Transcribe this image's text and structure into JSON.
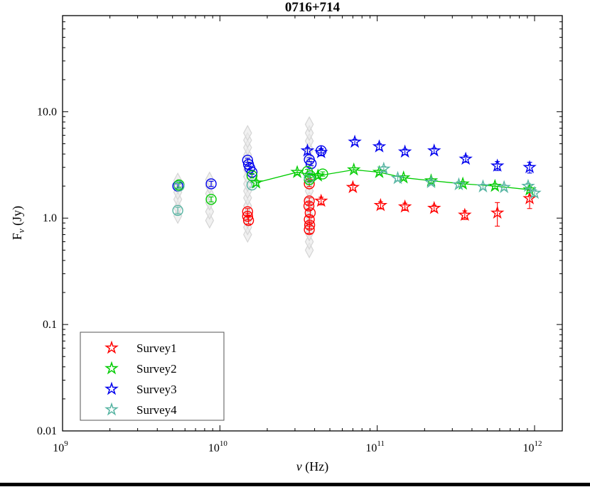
{
  "window": {
    "bottom_border_color": "#000000"
  },
  "chart_data": {
    "type": "scatter",
    "title": "0716+714",
    "xlabel": "ν (Hz)",
    "ylabel": "F_ν (Jy)",
    "xscale": "log",
    "yscale": "log",
    "xlim": [
      1000000000.0,
      1500000000000.0
    ],
    "ylim": [
      0.01,
      80
    ],
    "grid": false,
    "labels": {
      "x_symbol": "ν",
      "x_rest": " (Hz)",
      "y_main": "F",
      "y_sub": "ν",
      "y_rest": " (Jy)"
    },
    "x_major_ticks": [
      1000000000.0,
      10000000000.0,
      100000000000.0,
      1000000000000.0
    ],
    "x_tick_labels": [
      {
        "base": "10",
        "exp": "9"
      },
      {
        "base": "10",
        "exp": "10"
      },
      {
        "base": "10",
        "exp": "11"
      },
      {
        "base": "10",
        "exp": "12"
      }
    ],
    "y_major_ticks": [
      0.01,
      0.1,
      1,
      10
    ],
    "y_tick_labels": [
      "0.01",
      "0.1",
      "1.0",
      "10.0"
    ],
    "legend": {
      "position": "lower-left",
      "items": [
        {
          "label": "Survey1",
          "color": "#ff0000"
        },
        {
          "label": "Survey2",
          "color": "#00cc00"
        },
        {
          "label": "Survey3",
          "color": "#0000ee"
        },
        {
          "label": "Survey4",
          "color": "#56b4a2"
        }
      ]
    },
    "series": [
      {
        "name": "archival-gray",
        "marker": "diamond",
        "color": "#d5d5d5",
        "fill": "#e9e9e9",
        "fill_opacity": 0.65,
        "size": 9,
        "in_legend": false,
        "points": [
          [
            5400000000.0,
            1.05
          ],
          [
            5400000000.0,
            1.25
          ],
          [
            5400000000.0,
            1.5
          ],
          [
            5400000000.0,
            1.75
          ],
          [
            5400000000.0,
            2.0
          ],
          [
            5400000000.0,
            2.25
          ],
          [
            8600000000.0,
            0.95
          ],
          [
            8600000000.0,
            1.15
          ],
          [
            8600000000.0,
            1.4
          ],
          [
            8600000000.0,
            1.7
          ],
          [
            8600000000.0,
            2.0
          ],
          [
            8600000000.0,
            2.3
          ],
          [
            15000000000.0,
            0.7
          ],
          [
            15000000000.0,
            0.82
          ],
          [
            15000000000.0,
            0.95
          ],
          [
            15000000000.0,
            1.1
          ],
          [
            15000000000.0,
            1.3
          ],
          [
            15000000000.0,
            1.55
          ],
          [
            15000000000.0,
            1.8
          ],
          [
            15000000000.0,
            2.1
          ],
          [
            15000000000.0,
            2.45
          ],
          [
            15000000000.0,
            2.85
          ],
          [
            15000000000.0,
            3.3
          ],
          [
            15000000000.0,
            3.9
          ],
          [
            15000000000.0,
            4.6
          ],
          [
            15000000000.0,
            5.4
          ],
          [
            15000000000.0,
            6.3
          ],
          [
            37000000000.0,
            0.5
          ],
          [
            37000000000.0,
            0.6
          ],
          [
            37000000000.0,
            0.72
          ],
          [
            37000000000.0,
            0.86
          ],
          [
            37000000000.0,
            1.05
          ],
          [
            37000000000.0,
            1.25
          ],
          [
            37000000000.0,
            1.5
          ],
          [
            37000000000.0,
            1.8
          ],
          [
            37000000000.0,
            2.15
          ],
          [
            37000000000.0,
            2.6
          ],
          [
            37000000000.0,
            3.1
          ],
          [
            37000000000.0,
            3.7
          ],
          [
            37000000000.0,
            4.4
          ],
          [
            37000000000.0,
            5.3
          ],
          [
            37000000000.0,
            6.3
          ],
          [
            37000000000.0,
            7.6
          ]
        ]
      },
      {
        "name": "red-circles",
        "marker": "circle",
        "color": "#ff0000",
        "size": 7,
        "in_legend": false,
        "points": [
          [
            15000000000.0,
            1.15,
            0.08
          ],
          [
            15000000000.0,
            1.04,
            0.07
          ],
          [
            15200000000.0,
            0.95,
            0.07
          ],
          [
            37000000000.0,
            2.1,
            0.12
          ],
          [
            37000000000.0,
            1.45,
            0.1
          ],
          [
            36800000000.0,
            1.3,
            0.1
          ],
          [
            37500000000.0,
            1.12,
            0.08
          ],
          [
            37000000000.0,
            0.97,
            0.07
          ],
          [
            37200000000.0,
            0.86,
            0.06
          ],
          [
            37000000000.0,
            0.78,
            0.06
          ]
        ]
      },
      {
        "name": "blue-circles",
        "marker": "circle",
        "color": "#0000ee",
        "size": 7,
        "in_legend": false,
        "points": [
          [
            5400000000.0,
            2.0,
            0.1
          ],
          [
            8800000000.0,
            2.1,
            0.12
          ],
          [
            15000000000.0,
            3.5,
            0.15
          ],
          [
            15200000000.0,
            3.2,
            0.14
          ],
          [
            15500000000.0,
            2.95,
            0.13
          ],
          [
            16000000000.0,
            2.7,
            0.12
          ],
          [
            37000000000.0,
            3.55,
            0.15
          ],
          [
            38000000000.0,
            3.25,
            0.14
          ],
          [
            44000000000.0,
            4.3,
            0.2
          ]
        ]
      },
      {
        "name": "green-circles",
        "marker": "circle",
        "color": "#00cc00",
        "size": 7,
        "in_legend": false,
        "points": [
          [
            5500000000.0,
            2.05,
            0.1
          ],
          [
            8800000000.0,
            1.5,
            0.08
          ],
          [
            16000000000.0,
            2.5,
            0.12
          ],
          [
            36000000000.0,
            2.75,
            0.12
          ],
          [
            37500000000.0,
            2.5,
            0.11
          ],
          [
            37000000000.0,
            2.3,
            0.1
          ],
          [
            45000000000.0,
            2.6,
            0.12
          ]
        ]
      },
      {
        "name": "teal-circles",
        "marker": "circle",
        "color": "#56b4a2",
        "size": 7,
        "in_legend": false,
        "points": [
          [
            5500000000.0,
            2.0,
            0.1
          ],
          [
            5400000000.0,
            1.18,
            0.08
          ],
          [
            16000000000.0,
            2.05,
            0.1
          ],
          [
            37000000000.0,
            2.4,
            0.11
          ]
        ]
      },
      {
        "name": "Survey1",
        "marker": "star",
        "color": "#ff0000",
        "size": 8,
        "in_legend": true,
        "points": [
          [
            44000000000.0,
            1.45,
            0.12
          ],
          [
            70000000000.0,
            1.95,
            0.12
          ],
          [
            105000000000.0,
            1.32,
            0.1
          ],
          [
            150000000000.0,
            1.28,
            0.1
          ],
          [
            230000000000.0,
            1.24,
            0.08
          ],
          [
            360000000000.0,
            1.07,
            0.1
          ],
          [
            580000000000.0,
            1.12,
            0.28
          ],
          [
            930000000000.0,
            1.53,
            0.3
          ]
        ]
      },
      {
        "name": "Survey2",
        "marker": "star",
        "color": "#00cc00",
        "size": 8,
        "line": true,
        "in_legend": true,
        "points": [
          [
            17000000000.0,
            2.15,
            0.12
          ],
          [
            31000000000.0,
            2.7,
            0.12
          ],
          [
            42000000000.0,
            2.5,
            0.12
          ],
          [
            71000000000.0,
            2.85,
            0.12
          ],
          [
            103000000000.0,
            2.7,
            0.12
          ],
          [
            147000000000.0,
            2.4,
            0.1
          ],
          [
            220000000000.0,
            2.25,
            0.1
          ],
          [
            350000000000.0,
            2.1,
            0.1
          ],
          [
            560000000000.0,
            2.0,
            0.1
          ],
          [
            930000000000.0,
            1.85,
            0.12
          ]
        ]
      },
      {
        "name": "Survey3",
        "marker": "star",
        "color": "#0000ee",
        "size": 8,
        "in_legend": true,
        "points": [
          [
            36000000000.0,
            4.3,
            0.3
          ],
          [
            44000000000.0,
            4.15,
            0.3
          ],
          [
            72000000000.0,
            5.2,
            0.3
          ],
          [
            103000000000.0,
            4.7,
            0.3
          ],
          [
            150000000000.0,
            4.2,
            0.25
          ],
          [
            230000000000.0,
            4.3,
            0.25
          ],
          [
            365000000000.0,
            3.6,
            0.25
          ],
          [
            580000000000.0,
            3.1,
            0.3
          ],
          [
            930000000000.0,
            3.0,
            0.35
          ]
        ]
      },
      {
        "name": "Survey4",
        "marker": "star",
        "color": "#56b4a2",
        "size": 8,
        "in_legend": true,
        "points": [
          [
            110000000000.0,
            2.9,
            0.15
          ],
          [
            135000000000.0,
            2.37,
            0.12
          ],
          [
            220000000000.0,
            2.17,
            0.1
          ],
          [
            330000000000.0,
            2.07,
            0.1
          ],
          [
            470000000000.0,
            1.98,
            0.1
          ],
          [
            640000000000.0,
            1.95,
            0.1
          ],
          [
            910000000000.0,
            2.0,
            0.12
          ],
          [
            1000000000000.0,
            1.72,
            0.12
          ]
        ]
      }
    ]
  }
}
